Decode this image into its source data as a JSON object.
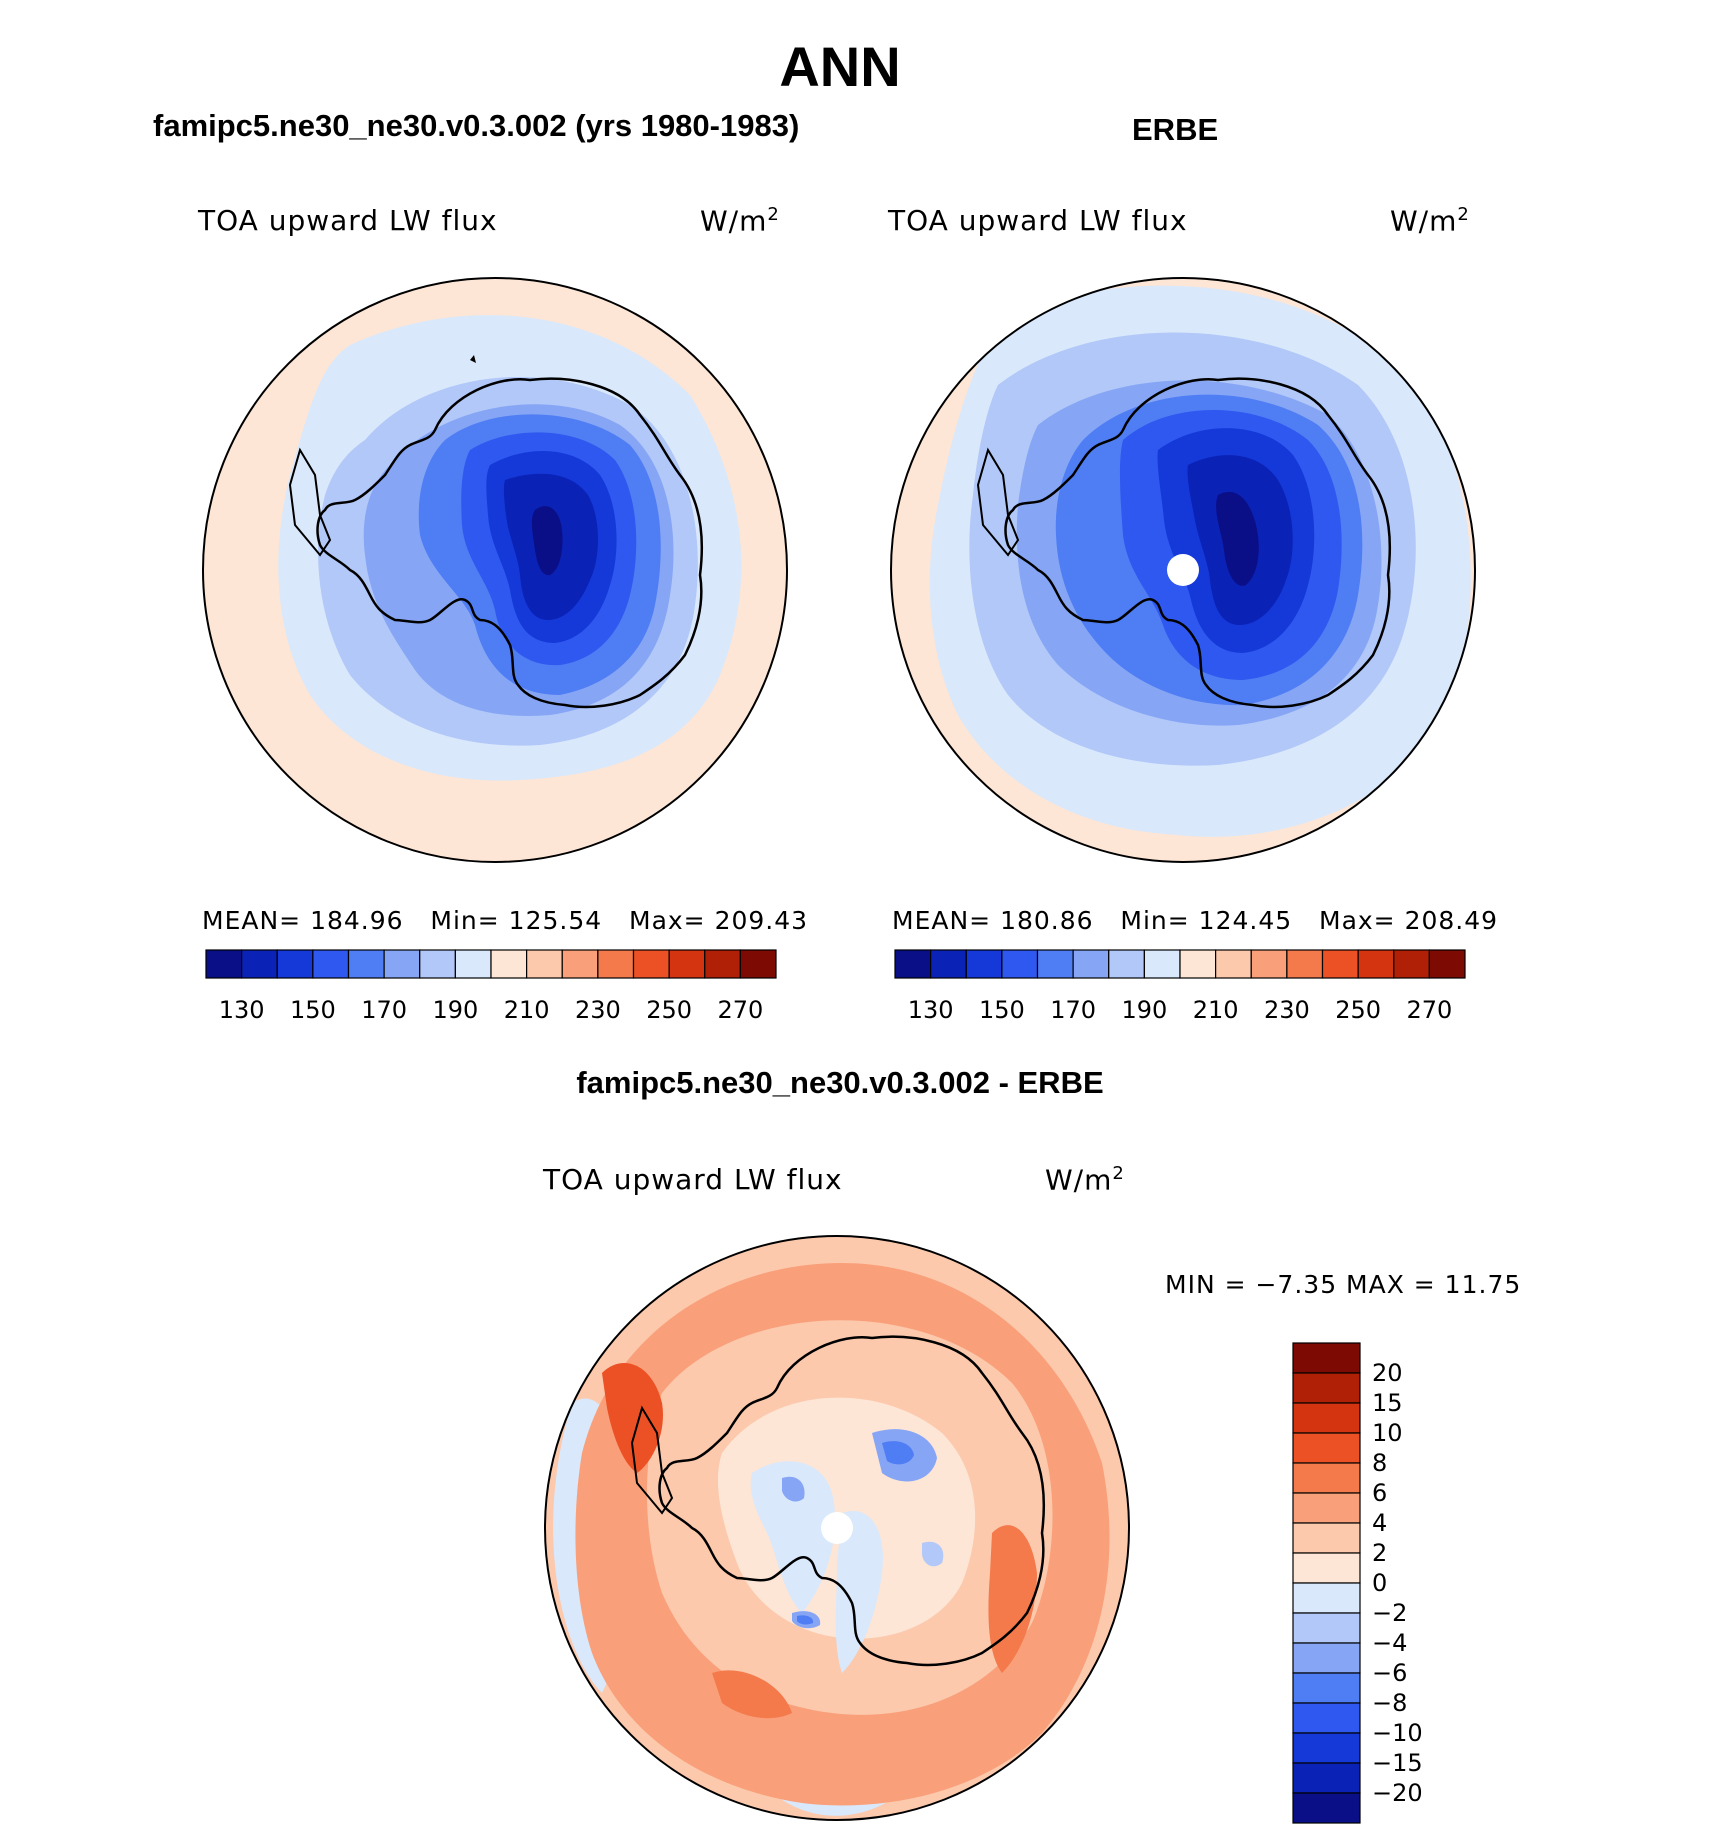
{
  "title": "ANN",
  "panels": [
    {
      "title": "famipc5.ne30_ne30.v0.3.002 (yrs 1980-1983)",
      "variable": "TOA upward LW flux",
      "units_base": "W/m",
      "units_exp": "2",
      "stats": {
        "mean_label": "MEAN=",
        "mean": "184.96",
        "min_label": "Min=",
        "min": "125.54",
        "max_label": "Max=",
        "max": "209.43"
      },
      "colorbar_ticks": [
        "130",
        "150",
        "170",
        "190",
        "210",
        "230",
        "250",
        "270"
      ]
    },
    {
      "title": "ERBE",
      "variable": "TOA upward LW flux",
      "units_base": "W/m",
      "units_exp": "2",
      "stats": {
        "mean_label": "MEAN=",
        "mean": "180.86",
        "min_label": "Min=",
        "min": "124.45",
        "max_label": "Max=",
        "max": "208.49"
      },
      "colorbar_ticks": [
        "130",
        "150",
        "170",
        "190",
        "210",
        "230",
        "250",
        "270"
      ]
    },
    {
      "title": "famipc5.ne30_ne30.v0.3.002 - ERBE",
      "variable": "TOA upward LW flux",
      "units_base": "W/m",
      "units_exp": "2",
      "stats_text": "MIN =   −7.35 MAX =   11.75",
      "colorbar_ticks": [
        "20",
        "15",
        "10",
        "8",
        "6",
        "4",
        "2",
        "0",
        "−2",
        "−4",
        "−6",
        "−8",
        "−10",
        "−15",
        "−20"
      ]
    }
  ],
  "colors": {
    "abs_scale": [
      "#0b0f87",
      "#0a22b6",
      "#1539d8",
      "#2e58ef",
      "#4f7df4",
      "#86a6f5",
      "#b1c8f8",
      "#d9e8fb",
      "#fde6d6",
      "#fcc9ad",
      "#f9a07a",
      "#f47a4c",
      "#ec5125",
      "#d43410",
      "#b02006",
      "#7d0a03"
    ],
    "diff_scale": [
      "#7d0a03",
      "#b02006",
      "#d43410",
      "#ec5125",
      "#f47a4c",
      "#f9a07a",
      "#fcc9ad",
      "#fde6d6",
      "#d9e8fb",
      "#b1c8f8",
      "#86a6f5",
      "#4f7df4",
      "#2e58ef",
      "#1539d8",
      "#0a22b6",
      "#0b0f87"
    ]
  }
}
